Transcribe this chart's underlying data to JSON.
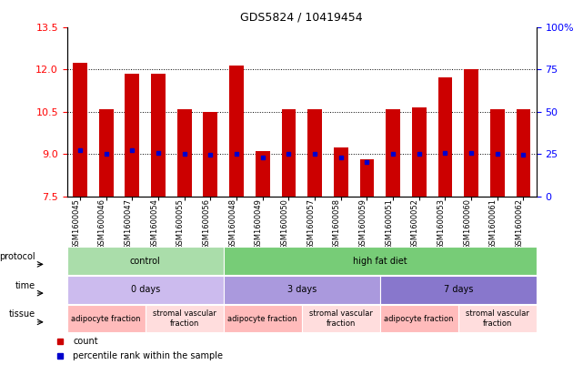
{
  "title": "GDS5824 / 10419454",
  "samples": [
    "GSM1600045",
    "GSM1600046",
    "GSM1600047",
    "GSM1600054",
    "GSM1600055",
    "GSM1600056",
    "GSM1600048",
    "GSM1600049",
    "GSM1600050",
    "GSM1600057",
    "GSM1600058",
    "GSM1600059",
    "GSM1600051",
    "GSM1600052",
    "GSM1600053",
    "GSM1600060",
    "GSM1600061",
    "GSM1600062"
  ],
  "bar_heights": [
    12.22,
    10.6,
    11.85,
    11.85,
    10.6,
    10.5,
    12.12,
    9.1,
    10.6,
    10.6,
    9.22,
    8.82,
    10.6,
    10.65,
    11.72,
    12.02,
    10.6,
    10.6
  ],
  "blue_y": [
    9.15,
    9.02,
    9.12,
    9.05,
    9.0,
    8.98,
    9.02,
    8.88,
    9.02,
    9.02,
    8.88,
    8.72,
    9.0,
    9.02,
    9.05,
    9.05,
    9.02,
    8.98
  ],
  "ylim": [
    7.5,
    13.5
  ],
  "y2lim": [
    0,
    100
  ],
  "yticks": [
    7.5,
    9.0,
    10.5,
    12.0,
    13.5
  ],
  "y2ticks": [
    0,
    25,
    50,
    75,
    100
  ],
  "bar_color": "#cc0000",
  "blue_color": "#0000cc",
  "bg_color": "#ffffff",
  "protocol_row": {
    "label": "protocol",
    "groups": [
      {
        "text": "control",
        "start": 0,
        "end": 6,
        "color": "#aaddaa"
      },
      {
        "text": "high fat diet",
        "start": 6,
        "end": 18,
        "color": "#77cc77"
      }
    ]
  },
  "time_row": {
    "label": "time",
    "groups": [
      {
        "text": "0 days",
        "start": 0,
        "end": 6,
        "color": "#ccbbee"
      },
      {
        "text": "3 days",
        "start": 6,
        "end": 12,
        "color": "#aa99dd"
      },
      {
        "text": "7 days",
        "start": 12,
        "end": 18,
        "color": "#8877cc"
      }
    ]
  },
  "tissue_row": {
    "label": "tissue",
    "groups": [
      {
        "text": "adipocyte fraction",
        "start": 0,
        "end": 3,
        "color": "#ffbbbb"
      },
      {
        "text": "stromal vascular\nfraction",
        "start": 3,
        "end": 6,
        "color": "#ffdddd"
      },
      {
        "text": "adipocyte fraction",
        "start": 6,
        "end": 9,
        "color": "#ffbbbb"
      },
      {
        "text": "stromal vascular\nfraction",
        "start": 9,
        "end": 12,
        "color": "#ffdddd"
      },
      {
        "text": "adipocyte fraction",
        "start": 12,
        "end": 15,
        "color": "#ffbbbb"
      },
      {
        "text": "stromal vascular\nfraction",
        "start": 15,
        "end": 18,
        "color": "#ffdddd"
      }
    ]
  },
  "legend_items": [
    {
      "color": "#cc0000",
      "marker": "s",
      "label": "count"
    },
    {
      "color": "#0000cc",
      "marker": "s",
      "label": "percentile rank within the sample"
    }
  ],
  "bar_width": 0.55,
  "bar_bottom": 7.5,
  "grid_yticks": [
    9.0,
    10.5,
    12.0
  ]
}
